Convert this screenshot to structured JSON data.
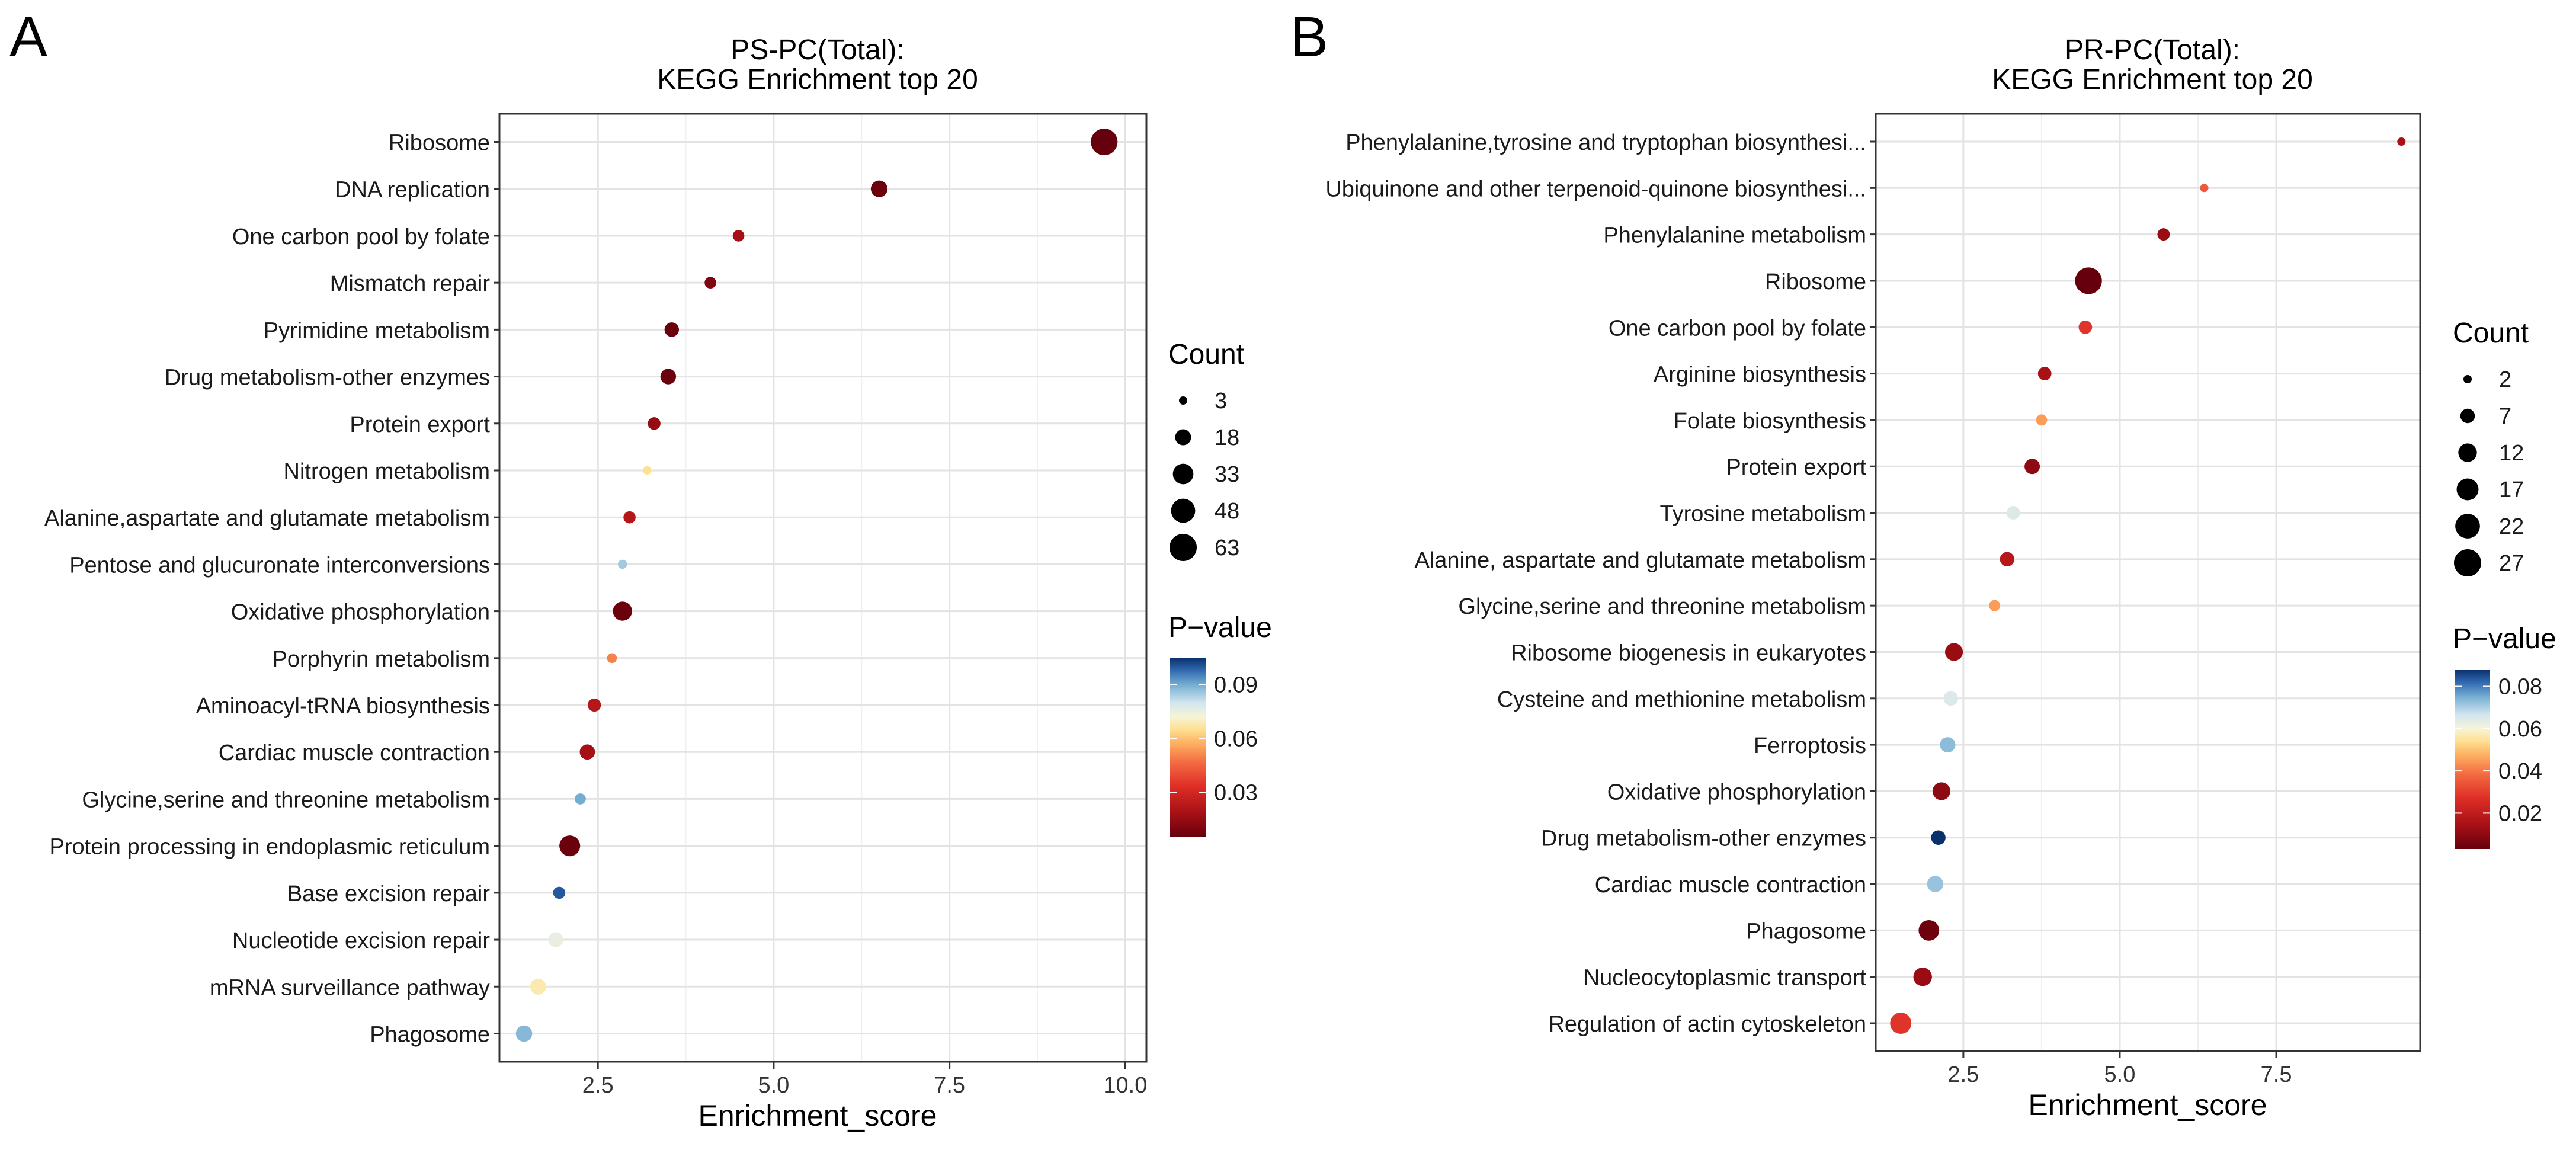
{
  "chart_data": [
    {
      "type": "scatter",
      "panel_letter": "A",
      "title": [
        "PS-PC(Total):",
        "KEGG Enrichment top 20"
      ],
      "xlabel": "Enrichment_score",
      "ylabel": "",
      "xlim": [
        1.1,
        10.3
      ],
      "xticks": [
        2.5,
        5.0,
        7.5,
        10.0
      ],
      "xtick_labels": [
        "2.5",
        "5.0",
        "7.5",
        "10.0"
      ],
      "grid": true,
      "legend_position": "right",
      "size_legend": {
        "title": "Count",
        "values": [
          3,
          18,
          33,
          48,
          63
        ],
        "labels": [
          "3",
          "18",
          "33",
          "48",
          "63"
        ]
      },
      "color_legend": {
        "title": "P−value",
        "range": [
          0.005,
          0.105
        ],
        "ticks": [
          0.03,
          0.06,
          0.09
        ],
        "labels": [
          "0.03",
          "0.06",
          "0.09"
        ]
      },
      "categories": [
        "Ribosome",
        "DNA replication",
        "One carbon pool by folate",
        "Mismatch repair",
        "Pyrimidine metabolism",
        "Drug metabolism-other enzymes",
        "Protein export",
        "Nitrogen metabolism",
        "Alanine,aspartate and glutamate metabolism",
        "Pentose and glucuronate interconversions",
        "Oxidative phosphorylation",
        "Porphyrin metabolism",
        "Aminoacyl-tRNA biosynthesis",
        "Cardiac muscle contraction",
        "Glycine,serine and threonine metabolism",
        "Protein processing in endoplasmic reticulum",
        "Base excision repair",
        "Nucleotide excision repair",
        "mRNA surveillance pathway",
        "Phagosome"
      ],
      "x": [
        9.7,
        6.5,
        4.5,
        4.1,
        3.55,
        3.5,
        3.3,
        3.2,
        2.95,
        2.85,
        2.85,
        2.7,
        2.45,
        2.35,
        2.25,
        2.1,
        1.95,
        1.9,
        1.65,
        1.45
      ],
      "count": [
        60,
        20,
        8,
        8,
        14,
        17,
        10,
        3,
        9,
        4,
        28,
        5,
        11,
        16,
        7,
        34,
        9,
        15,
        18,
        19
      ],
      "pvalue": [
        0.005,
        0.006,
        0.018,
        0.01,
        0.006,
        0.006,
        0.015,
        0.065,
        0.022,
        0.085,
        0.006,
        0.05,
        0.022,
        0.018,
        0.09,
        0.006,
        0.1,
        0.075,
        0.068,
        0.088
      ]
    },
    {
      "type": "scatter",
      "panel_letter": "B",
      "title": [
        "PR-PC(Total):",
        "KEGG Enrichment top 20"
      ],
      "xlabel": "Enrichment_score",
      "ylabel": "",
      "xlim": [
        1.1,
        9.8
      ],
      "xticks": [
        2.5,
        5.0,
        7.5
      ],
      "xtick_labels": [
        "2.5",
        "5.0",
        "7.5"
      ],
      "grid": true,
      "legend_position": "right",
      "size_legend": {
        "title": "Count",
        "values": [
          2,
          7,
          12,
          17,
          22,
          27
        ],
        "labels": [
          "2",
          "7",
          "12",
          "17",
          "22",
          "27"
        ]
      },
      "color_legend": {
        "title": "P−value",
        "range": [
          0.003,
          0.088
        ],
        "ticks": [
          0.02,
          0.04,
          0.06,
          0.08
        ],
        "labels": [
          "0.02",
          "0.04",
          "0.06",
          "0.08"
        ]
      },
      "categories": [
        "Phenylalanine,tyrosine and tryptophan biosynthesi...",
        "Ubiquinone and other terpenoid-quinone biosynthesi...",
        "Phenylalanine metabolism",
        "Ribosome",
        "One carbon pool by folate",
        "Arginine biosynthesis",
        "Folate biosynthesis",
        "Protein export",
        "Tyrosine metabolism",
        "Alanine, aspartate and glutamate metabolism",
        "Glycine,serine and threonine metabolism",
        "Ribosome biogenesis in eukaryotes",
        "Cysteine and methionine metabolism",
        "Ferroptosis",
        "Oxidative phosphorylation",
        "Drug metabolism-other enzymes",
        "Cardiac muscle contraction",
        "Phagosome",
        "Nucleocytoplasmic transport",
        "Regulation of actin cytoskeleton"
      ],
      "x": [
        9.5,
        6.35,
        5.7,
        4.5,
        4.45,
        3.8,
        3.75,
        3.6,
        3.3,
        3.2,
        3.0,
        2.35,
        2.3,
        2.25,
        2.15,
        2.1,
        2.05,
        1.95,
        1.85,
        1.5
      ],
      "count": [
        2,
        2,
        5,
        26,
        6,
        6,
        4,
        8,
        6,
        7,
        4,
        11,
        7,
        8,
        11,
        7,
        9,
        15,
        12,
        16
      ],
      "pvalue": [
        0.015,
        0.035,
        0.012,
        0.003,
        0.028,
        0.015,
        0.045,
        0.01,
        0.065,
        0.018,
        0.045,
        0.012,
        0.065,
        0.073,
        0.01,
        0.088,
        0.072,
        0.004,
        0.012,
        0.028
      ]
    }
  ]
}
